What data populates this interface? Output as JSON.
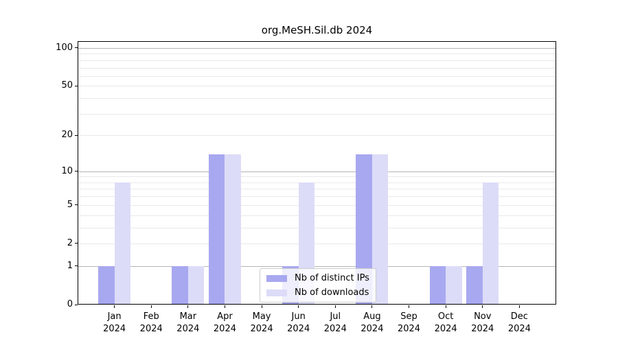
{
  "chart_data": {
    "type": "bar",
    "title": "org.MeSH.Sil.db 2024",
    "categories": [
      "Jan",
      "Feb",
      "Mar",
      "Apr",
      "May",
      "Jun",
      "Jul",
      "Aug",
      "Sep",
      "Oct",
      "Nov",
      "Dec"
    ],
    "x_year_label": "2024",
    "series": [
      {
        "name": "Nb of distinct IPs",
        "color": "#a8a8f0",
        "values": [
          1,
          0,
          1,
          14,
          0,
          1,
          0,
          14,
          0,
          1,
          1,
          0
        ]
      },
      {
        "name": "Nb of downloads",
        "color": "#dcdcf8",
        "values": [
          8,
          0,
          1,
          14,
          0,
          8,
          0,
          14,
          0,
          1,
          8,
          0
        ]
      }
    ],
    "xlabel": "",
    "ylabel": "",
    "yscale": "log1p",
    "ylim": [
      0,
      113.2
    ],
    "yticks": [
      0,
      1,
      2,
      5,
      10,
      20,
      50,
      100
    ],
    "major_grid_values": [
      1,
      10,
      100
    ],
    "minor_grid_values": [
      2,
      3,
      4,
      5,
      6,
      7,
      8,
      9,
      20,
      30,
      40,
      50,
      60,
      70,
      80,
      90
    ],
    "grid": "on",
    "legend_position": "inside lower center"
  },
  "colors": {
    "major_grid": "#b3b3b3",
    "minor_grid": "#e9e9e9",
    "axis": "#000000",
    "legend_border": "#cccccc",
    "background": "#ffffff"
  }
}
